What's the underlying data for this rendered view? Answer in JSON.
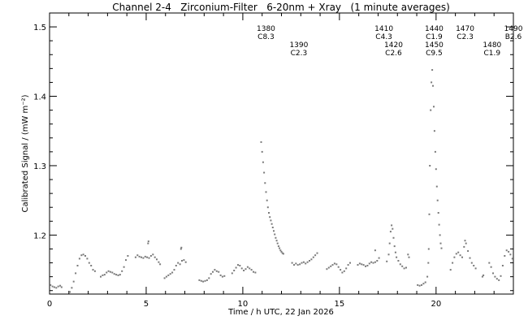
{
  "chart_data": {
    "type": "scatter",
    "title": "Channel 2-4   Zirconium-Filter   6-20nm + Xray   (1 minute averages)",
    "xlabel": "Time / h UTC, 22 Jan 2026",
    "ylabel": "Calibrated Signal / (mW m⁻²)",
    "xlim": [
      0,
      24
    ],
    "ylim": [
      1.115,
      1.52
    ],
    "x_ticks": [
      0,
      5,
      10,
      15,
      20
    ],
    "x_tick_labels": [
      "0",
      "5",
      "10",
      "15",
      "20"
    ],
    "y_ticks": [
      1.2,
      1.3,
      1.4,
      1.5
    ],
    "y_tick_labels": [
      "1.2",
      "1.3",
      "1.4",
      "1.5"
    ],
    "grid": false,
    "legend": "none",
    "color": "#7a7a7a",
    "flare_labels": [
      {
        "num": "1380",
        "cls": "C8.3",
        "x": 11.2,
        "row": 0
      },
      {
        "num": "1390",
        "cls": "C2.3",
        "x": 12.9,
        "row": 1
      },
      {
        "num": "1410",
        "cls": "C4.3",
        "x": 17.3,
        "row": 0
      },
      {
        "num": "1420",
        "cls": "C2.6",
        "x": 17.8,
        "row": 1
      },
      {
        "num": "1440",
        "cls": "C1.9",
        "x": 19.9,
        "row": 0
      },
      {
        "num": "1450",
        "cls": "C9.5",
        "x": 19.9,
        "row": 1
      },
      {
        "num": "1470",
        "cls": "C2.3",
        "x": 21.5,
        "row": 0
      },
      {
        "num": "1480",
        "cls": "C1.9",
        "x": 22.9,
        "row": 1
      },
      {
        "num": "1490",
        "cls": "B2.6",
        "x": 24.0,
        "row": 0
      }
    ],
    "series": [
      {
        "values": [
          [
            0.05,
            1.128
          ],
          [
            0.15,
            1.126
          ],
          [
            0.25,
            1.125
          ],
          [
            0.35,
            1.124
          ],
          [
            0.45,
            1.126
          ],
          [
            0.55,
            1.127
          ],
          [
            0.62,
            1.125
          ],
          [
            1.05,
            1.118
          ],
          [
            1.15,
            1.124
          ],
          [
            1.25,
            1.133
          ],
          [
            1.35,
            1.145
          ],
          [
            1.45,
            1.156
          ],
          [
            1.55,
            1.166
          ],
          [
            1.65,
            1.171
          ],
          [
            1.75,
            1.172
          ],
          [
            1.85,
            1.17
          ],
          [
            1.95,
            1.166
          ],
          [
            2.05,
            1.16
          ],
          [
            2.15,
            1.156
          ],
          [
            2.25,
            1.15
          ],
          [
            2.35,
            1.148
          ],
          [
            2.65,
            1.14
          ],
          [
            2.75,
            1.142
          ],
          [
            2.85,
            1.143
          ],
          [
            2.95,
            1.146
          ],
          [
            3.05,
            1.148
          ],
          [
            3.15,
            1.147
          ],
          [
            3.25,
            1.146
          ],
          [
            3.35,
            1.144
          ],
          [
            3.45,
            1.143
          ],
          [
            3.55,
            1.142
          ],
          [
            3.65,
            1.143
          ],
          [
            3.75,
            1.148
          ],
          [
            3.85,
            1.154
          ],
          [
            3.95,
            1.164
          ],
          [
            4.05,
            1.17
          ],
          [
            4.45,
            1.168
          ],
          [
            4.55,
            1.171
          ],
          [
            4.65,
            1.169
          ],
          [
            4.75,
            1.168
          ],
          [
            4.85,
            1.167
          ],
          [
            4.95,
            1.169
          ],
          [
            5.05,
            1.168
          ],
          [
            5.15,
            1.167
          ],
          [
            5.25,
            1.17
          ],
          [
            5.35,
            1.172
          ],
          [
            5.45,
            1.168
          ],
          [
            5.55,
            1.165
          ],
          [
            5.65,
            1.161
          ],
          [
            5.72,
            1.158
          ],
          [
            5.1,
            1.188
          ],
          [
            5.12,
            1.191
          ],
          [
            5.95,
            1.138
          ],
          [
            6.05,
            1.14
          ],
          [
            6.15,
            1.142
          ],
          [
            6.25,
            1.144
          ],
          [
            6.35,
            1.146
          ],
          [
            6.45,
            1.15
          ],
          [
            6.55,
            1.156
          ],
          [
            6.65,
            1.16
          ],
          [
            6.75,
            1.158
          ],
          [
            6.85,
            1.163
          ],
          [
            6.95,
            1.164
          ],
          [
            7.05,
            1.161
          ],
          [
            6.8,
            1.18
          ],
          [
            6.82,
            1.182
          ],
          [
            7.75,
            1.135
          ],
          [
            7.85,
            1.134
          ],
          [
            7.95,
            1.133
          ],
          [
            8.05,
            1.134
          ],
          [
            8.15,
            1.135
          ],
          [
            8.25,
            1.138
          ],
          [
            8.35,
            1.144
          ],
          [
            8.45,
            1.147
          ],
          [
            8.55,
            1.15
          ],
          [
            8.65,
            1.148
          ],
          [
            8.75,
            1.147
          ],
          [
            8.85,
            1.142
          ],
          [
            8.95,
            1.14
          ],
          [
            9.05,
            1.141
          ],
          [
            9.45,
            1.145
          ],
          [
            9.55,
            1.149
          ],
          [
            9.65,
            1.153
          ],
          [
            9.75,
            1.157
          ],
          [
            9.85,
            1.156
          ],
          [
            9.95,
            1.152
          ],
          [
            10.05,
            1.149
          ],
          [
            10.15,
            1.151
          ],
          [
            10.25,
            1.154
          ],
          [
            10.35,
            1.152
          ],
          [
            10.45,
            1.15
          ],
          [
            10.55,
            1.147
          ],
          [
            10.65,
            1.146
          ],
          [
            10.95,
            1.334
          ],
          [
            11.0,
            1.32
          ],
          [
            11.05,
            1.305
          ],
          [
            11.1,
            1.29
          ],
          [
            11.15,
            1.275
          ],
          [
            11.2,
            1.262
          ],
          [
            11.25,
            1.25
          ],
          [
            11.3,
            1.24
          ],
          [
            11.35,
            1.232
          ],
          [
            11.4,
            1.226
          ],
          [
            11.45,
            1.221
          ],
          [
            11.5,
            1.216
          ],
          [
            11.55,
            1.211
          ],
          [
            11.6,
            1.206
          ],
          [
            11.65,
            1.201
          ],
          [
            11.7,
            1.196
          ],
          [
            11.75,
            1.192
          ],
          [
            11.8,
            1.188
          ],
          [
            11.85,
            1.184
          ],
          [
            11.9,
            1.181
          ],
          [
            11.95,
            1.178
          ],
          [
            12.0,
            1.176
          ],
          [
            12.05,
            1.174
          ],
          [
            12.1,
            1.173
          ],
          [
            12.55,
            1.16
          ],
          [
            12.65,
            1.157
          ],
          [
            12.75,
            1.159
          ],
          [
            12.85,
            1.157
          ],
          [
            12.95,
            1.158
          ],
          [
            13.05,
            1.16
          ],
          [
            13.15,
            1.161
          ],
          [
            13.25,
            1.159
          ],
          [
            13.35,
            1.161
          ],
          [
            13.45,
            1.163
          ],
          [
            13.55,
            1.165
          ],
          [
            13.65,
            1.168
          ],
          [
            13.75,
            1.171
          ],
          [
            13.85,
            1.174
          ],
          [
            14.35,
            1.151
          ],
          [
            14.45,
            1.153
          ],
          [
            14.55,
            1.155
          ],
          [
            14.65,
            1.157
          ],
          [
            14.75,
            1.159
          ],
          [
            14.85,
            1.158
          ],
          [
            14.95,
            1.154
          ],
          [
            15.05,
            1.15
          ],
          [
            15.15,
            1.146
          ],
          [
            15.25,
            1.148
          ],
          [
            15.35,
            1.152
          ],
          [
            15.45,
            1.157
          ],
          [
            15.55,
            1.16
          ],
          [
            15.95,
            1.157
          ],
          [
            16.05,
            1.159
          ],
          [
            16.15,
            1.158
          ],
          [
            16.25,
            1.157
          ],
          [
            16.35,
            1.155
          ],
          [
            16.45,
            1.156
          ],
          [
            16.55,
            1.159
          ],
          [
            16.65,
            1.161
          ],
          [
            16.75,
            1.16
          ],
          [
            16.85,
            1.161
          ],
          [
            16.95,
            1.163
          ],
          [
            17.05,
            1.167
          ],
          [
            16.85,
            1.178
          ],
          [
            17.45,
            1.162
          ],
          [
            17.55,
            1.172
          ],
          [
            17.6,
            1.188
          ],
          [
            17.65,
            1.205
          ],
          [
            17.7,
            1.214
          ],
          [
            17.75,
            1.209
          ],
          [
            17.8,
            1.196
          ],
          [
            17.85,
            1.184
          ],
          [
            17.9,
            1.175
          ],
          [
            17.95,
            1.168
          ],
          [
            18.05,
            1.163
          ],
          [
            18.15,
            1.158
          ],
          [
            18.25,
            1.155
          ],
          [
            18.35,
            1.152
          ],
          [
            18.45,
            1.153
          ],
          [
            18.55,
            1.172
          ],
          [
            18.6,
            1.168
          ],
          [
            19.05,
            1.128
          ],
          [
            19.15,
            1.127
          ],
          [
            19.25,
            1.128
          ],
          [
            19.35,
            1.13
          ],
          [
            19.45,
            1.132
          ],
          [
            19.55,
            1.14
          ],
          [
            19.6,
            1.16
          ],
          [
            19.62,
            1.18
          ],
          [
            19.65,
            1.23
          ],
          [
            19.68,
            1.3
          ],
          [
            19.72,
            1.38
          ],
          [
            19.76,
            1.42
          ],
          [
            19.8,
            1.438
          ],
          [
            19.84,
            1.415
          ],
          [
            19.88,
            1.385
          ],
          [
            19.92,
            1.35
          ],
          [
            19.96,
            1.32
          ],
          [
            20.0,
            1.295
          ],
          [
            20.04,
            1.27
          ],
          [
            20.08,
            1.25
          ],
          [
            20.12,
            1.232
          ],
          [
            20.16,
            1.215
          ],
          [
            20.2,
            1.2
          ],
          [
            20.24,
            1.188
          ],
          [
            20.28,
            1.181
          ],
          [
            20.75,
            1.15
          ],
          [
            20.85,
            1.16
          ],
          [
            20.95,
            1.168
          ],
          [
            21.05,
            1.173
          ],
          [
            21.15,
            1.175
          ],
          [
            21.25,
            1.171
          ],
          [
            21.35,
            1.168
          ],
          [
            21.45,
            1.183
          ],
          [
            21.5,
            1.192
          ],
          [
            21.55,
            1.188
          ],
          [
            21.65,
            1.177
          ],
          [
            21.75,
            1.167
          ],
          [
            21.85,
            1.16
          ],
          [
            21.95,
            1.156
          ],
          [
            22.05,
            1.152
          ],
          [
            22.75,
            1.16
          ],
          [
            22.85,
            1.154
          ],
          [
            22.95,
            1.145
          ],
          [
            23.05,
            1.14
          ],
          [
            23.15,
            1.137
          ],
          [
            23.25,
            1.135
          ],
          [
            23.35,
            1.141
          ],
          [
            23.45,
            1.156
          ],
          [
            23.55,
            1.17
          ],
          [
            23.65,
            1.178
          ],
          [
            23.75,
            1.176
          ],
          [
            23.85,
            1.172
          ],
          [
            23.95,
            1.166
          ],
          [
            22.4,
            1.14
          ],
          [
            22.45,
            1.142
          ]
        ]
      }
    ]
  }
}
